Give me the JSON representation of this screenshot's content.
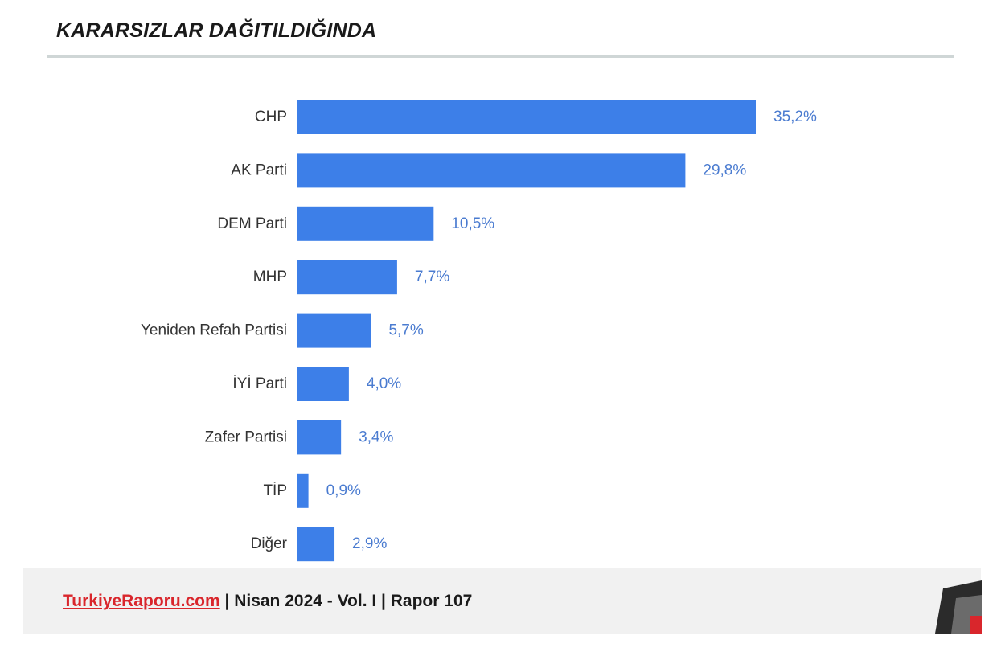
{
  "header": {
    "title": "KARARSIZLAR DAĞITILDIĞINDA"
  },
  "chart_data": {
    "type": "bar",
    "orientation": "horizontal",
    "categories": [
      "CHP",
      "AK Parti",
      "DEM Parti",
      "MHP",
      "Yeniden Refah Partisi",
      "İYİ Parti",
      "Zafer Partisi",
      "TİP",
      "Diğer"
    ],
    "values": [
      35.2,
      29.8,
      10.5,
      7.7,
      5.7,
      4.0,
      3.4,
      0.9,
      2.9
    ],
    "value_labels": [
      "35,2%",
      "29,8%",
      "10,5%",
      "7,7%",
      "5,7%",
      "4,0%",
      "3,4%",
      "0,9%",
      "2,9%"
    ],
    "xlim": [
      0,
      35.2
    ],
    "grid": false,
    "legend": "none"
  },
  "footer": {
    "site": "TurkiyeRaporu.com",
    "info": " | Nisan 2024 - Vol. I | Rapor 107"
  },
  "colors": {
    "bar": "#3d7fe8",
    "value_label": "#4a7bd0",
    "site_link": "#d9262c",
    "logo_dark": "#2b2b2b",
    "logo_red": "#d9262c"
  }
}
